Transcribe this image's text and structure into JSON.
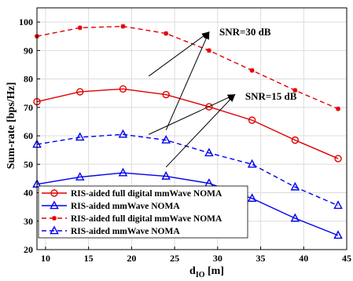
{
  "chart_data": {
    "type": "line",
    "xlabel_main": "d",
    "xlabel_sub": "IO",
    "xlabel_unit": " [m]",
    "ylabel": "Sum-rate [bps/Hz]",
    "xlim": [
      9,
      45
    ],
    "ylim": [
      20,
      105
    ],
    "xticks": [
      10,
      15,
      20,
      25,
      30,
      35,
      40,
      45
    ],
    "yticks": [
      20,
      30,
      40,
      50,
      60,
      70,
      80,
      90,
      100
    ],
    "grid": true,
    "legend_position": "bottom-left",
    "x": [
      9,
      14,
      19,
      24,
      29,
      34,
      39,
      44
    ],
    "series": [
      {
        "name": "RIS-aided full digital mmWave NOMA",
        "snr": "SNR=15 dB",
        "values": [
          72,
          75.5,
          76.5,
          74.5,
          70.2,
          65.5,
          58.5,
          52
        ],
        "color": "#e00000",
        "dash": "solid",
        "marker": "circle"
      },
      {
        "name": "RIS-aided mmWave NOMA",
        "snr": "SNR=15 dB",
        "values": [
          43,
          45.5,
          47,
          45.8,
          43.3,
          38,
          31,
          25
        ],
        "color": "#0000ee",
        "dash": "solid",
        "marker": "triangle"
      },
      {
        "name": "RIS-aided full digital mmWave NOMA",
        "snr": "SNR=30 dB",
        "values": [
          95,
          98,
          98.5,
          96,
          90,
          83,
          76,
          69.5
        ],
        "color": "#e00000",
        "dash": "dashed",
        "marker": "star"
      },
      {
        "name": "RIS-aided mmWave NOMA",
        "snr": "SNR=30 dB",
        "values": [
          57,
          59.5,
          60.5,
          58.5,
          54,
          50,
          42,
          35.5
        ],
        "color": "#0000ee",
        "dash": "dashed",
        "marker": "triangle"
      }
    ],
    "annotations": [
      {
        "text": "SNR=30 dB",
        "label_at": [
          30.2,
          96.5
        ],
        "arrow_head": [
          29,
          96.5
        ],
        "arrows_from": [
          [
            22,
            81
          ],
          [
            24,
            62
          ]
        ]
      },
      {
        "text": "SNR=15 dB",
        "label_at": [
          33.2,
          73.8
        ],
        "arrow_head": [
          32,
          74.5
        ],
        "arrows_from": [
          [
            22,
            60.5
          ],
          [
            24,
            49
          ]
        ]
      }
    ]
  }
}
